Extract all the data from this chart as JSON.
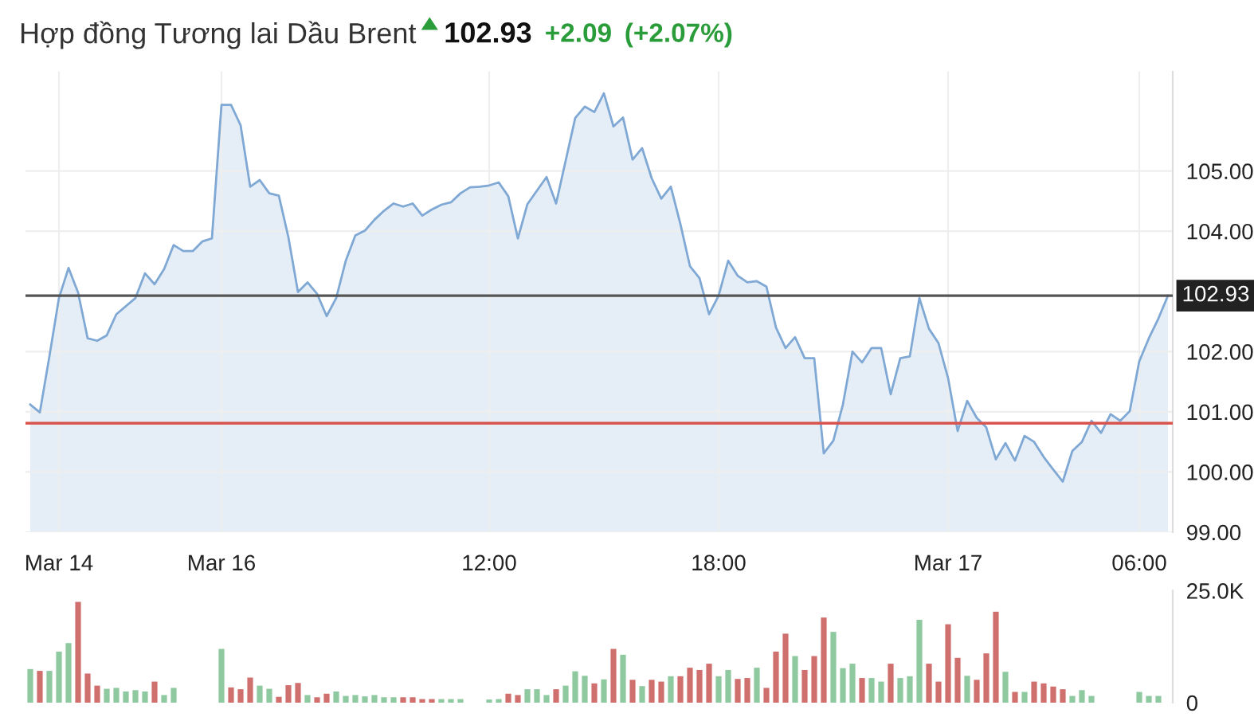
{
  "chart_data": [
    {
      "type": "area",
      "title": "Hợp đồng Tương lai Dầu Brent",
      "annotations": [
        "102.93",
        "+2.09",
        "(+2.07%)"
      ],
      "categories": [
        null,
        null,
        null,
        "Mar 14",
        null,
        null,
        null,
        null,
        null,
        null,
        null,
        null,
        null,
        null,
        null,
        null,
        null,
        null,
        null,
        null,
        "Mar 16",
        null,
        null,
        null,
        null,
        null,
        null,
        null,
        null,
        null,
        null,
        null,
        null,
        null,
        null,
        null,
        null,
        null,
        null,
        null,
        null,
        null,
        null,
        null,
        null,
        null,
        null,
        null,
        "12:00",
        null,
        null,
        null,
        null,
        null,
        null,
        null,
        null,
        null,
        null,
        null,
        null,
        null,
        null,
        null,
        null,
        null,
        null,
        null,
        null,
        null,
        null,
        null,
        "18:00",
        null,
        null,
        null,
        null,
        null,
        null,
        null,
        null,
        null,
        null,
        null,
        null,
        null,
        null,
        null,
        null,
        null,
        null,
        null,
        null,
        null,
        null,
        null,
        "Mar 17",
        null,
        null,
        null,
        null,
        null,
        null,
        null,
        null,
        null,
        null,
        null,
        null,
        null,
        null,
        null,
        null,
        null,
        null,
        null,
        "06:00",
        null,
        null,
        null
      ],
      "ylim": [
        99,
        106.65
      ],
      "yticks": [
        {
          "value": 99,
          "label": "99.00"
        },
        {
          "value": 100,
          "label": "100.00"
        },
        {
          "value": 101,
          "label": "101.00"
        },
        {
          "value": 102,
          "label": "102.00"
        },
        {
          "value": 104,
          "label": "104.00"
        },
        {
          "value": 105,
          "label": "105.00"
        }
      ],
      "grid": true,
      "ref_lines": [
        {
          "axis": "y",
          "value": 102.93,
          "label": "102.93",
          "color": "#555555"
        },
        {
          "axis": "y",
          "value": 100.81,
          "color": "#d9534f"
        }
      ],
      "series": [
        {
          "color": "#7fa8d4",
          "values": [
            101.12,
            100.99,
            101.92,
            102.89,
            103.39,
            102.98,
            102.22,
            102.18,
            102.27,
            102.62,
            null,
            102.89,
            103.3,
            103.12,
            103.37,
            103.77,
            103.67,
            103.67,
            103.83,
            103.88,
            106.1,
            106.1,
            105.76,
            104.74,
            104.85,
            104.63,
            104.59,
            103.9,
            102.99,
            103.15,
            102.96,
            102.59,
            102.89,
            103.51,
            103.93,
            104.01,
            104.19,
            104.34,
            104.46,
            104.41,
            104.46,
            104.26,
            104.36,
            104.44,
            104.48,
            104.63,
            104.73,
            104.74,
            104.76,
            104.81,
            104.58,
            103.88,
            104.45,
            null,
            104.9,
            104.46,
            null,
            105.88,
            106.07,
            105.98,
            106.29,
            105.74,
            105.89,
            105.19,
            105.38,
            104.88,
            104.54,
            104.74,
            104.12,
            103.42,
            103.22,
            102.62,
            102.93,
            103.51,
            103.26,
            103.15,
            103.17,
            103.08,
            102.4,
            102.06,
            102.24,
            101.89,
            101.89,
            100.31,
            100.52,
            101.12,
            102.0,
            101.82,
            102.06,
            102.06,
            101.29,
            101.89,
            101.92,
            102.89,
            102.38,
            102.14,
            101.56,
            100.68,
            101.18,
            100.9,
            100.74,
            100.21,
            100.48,
            100.19,
            100.6,
            100.5,
            100.25,
            100.04,
            99.84,
            100.35,
            100.5,
            100.85,
            100.65,
            100.96,
            100.85,
            101.01,
            101.84,
            102.22,
            102.55,
            102.93
          ]
        }
      ]
    },
    {
      "type": "bar",
      "ylim": [
        0,
        25000
      ],
      "yticks": [
        {
          "value": 25000,
          "label": "25.0K"
        },
        0
      ],
      "categories": [
        null,
        null,
        null,
        null,
        null,
        null,
        null,
        null,
        null,
        null,
        null,
        null,
        null,
        null,
        null,
        null,
        null,
        null,
        null,
        null,
        null,
        null,
        null,
        null,
        null,
        null,
        null,
        null,
        null,
        null,
        null,
        null,
        null,
        null,
        null,
        null,
        null,
        null,
        null,
        null,
        null,
        null,
        null,
        null,
        null,
        null,
        null,
        null,
        null,
        null,
        null,
        null,
        null,
        null,
        null,
        null,
        null,
        null,
        null,
        null,
        null,
        null,
        null,
        null,
        null,
        null,
        null,
        null,
        null,
        null,
        null,
        null,
        null,
        null,
        null,
        null,
        null,
        null,
        null,
        null,
        null,
        null,
        null,
        null,
        null,
        null,
        null,
        null,
        null,
        null,
        null,
        null,
        null,
        null,
        null,
        null,
        null,
        null,
        null,
        null,
        null,
        null,
        null,
        null,
        null,
        null,
        null,
        null,
        null,
        null,
        null,
        null,
        null,
        null,
        null,
        null,
        null,
        null,
        null,
        null
      ],
      "values": [
        7500,
        7100,
        7100,
        11400,
        13300,
        22500,
        6500,
        3800,
        3100,
        3300,
        2500,
        2800,
        2500,
        4700,
        1700,
        3300,
        null,
        null,
        null,
        null,
        12000,
        3400,
        3000,
        5600,
        3800,
        3100,
        1300,
        3900,
        4400,
        1700,
        1200,
        2000,
        2500,
        1500,
        1700,
        1400,
        1700,
        1200,
        1200,
        1200,
        1200,
        800,
        800,
        800,
        800,
        800,
        null,
        null,
        700,
        800,
        2000,
        1700,
        3000,
        3000,
        1700,
        3000,
        3800,
        7000,
        6000,
        4300,
        5200,
        12000,
        10700,
        5100,
        3700,
        5100,
        4700,
        5900,
        5900,
        7800,
        7300,
        8700,
        5900,
        7300,
        5300,
        5500,
        7800,
        3300,
        11400,
        15400,
        10400,
        7300,
        10400,
        19000,
        15800,
        7700,
        8700,
        5500,
        5500,
        4700,
        8700,
        5500,
        5900,
        18500,
        8700,
        4700,
        17500,
        10000,
        6000,
        5100,
        11000,
        20300,
        6900,
        2400,
        2400,
        4700,
        4300,
        3600,
        3000,
        1500,
        2800,
        1500,
        null,
        null,
        null,
        null,
        2400,
        1500,
        1500,
        null
      ],
      "colors": [
        "#8fc9a0",
        "#d0706e",
        "#8fc9a0",
        "#8fc9a0",
        "#8fc9a0",
        "#d0706e",
        "#d0706e",
        "#d0706e",
        "#8fc9a0",
        "#8fc9a0",
        "#8fc9a0",
        "#8fc9a0",
        "#8fc9a0",
        "#d0706e",
        "#8fc9a0",
        "#8fc9a0",
        null,
        null,
        null,
        null,
        "#8fc9a0",
        "#d0706e",
        "#d0706e",
        "#d0706e",
        "#8fc9a0",
        "#8fc9a0",
        "#d0706e",
        "#d0706e",
        "#d0706e",
        "#8fc9a0",
        "#d0706e",
        "#d0706e",
        "#8fc9a0",
        "#8fc9a0",
        "#8fc9a0",
        "#8fc9a0",
        "#8fc9a0",
        "#8fc9a0",
        "#8fc9a0",
        "#d0706e",
        "#d0706e",
        "#d0706e",
        "#d0706e",
        "#8fc9a0",
        "#8fc9a0",
        "#8fc9a0",
        null,
        null,
        "#8fc9a0",
        "#8fc9a0",
        "#d0706e",
        "#d0706e",
        "#8fc9a0",
        "#8fc9a0",
        "#8fc9a0",
        "#d0706e",
        "#8fc9a0",
        "#8fc9a0",
        "#8fc9a0",
        "#d0706e",
        "#8fc9a0",
        "#d0706e",
        "#8fc9a0",
        "#d0706e",
        "#8fc9a0",
        "#d0706e",
        "#d0706e",
        "#8fc9a0",
        "#d0706e",
        "#d0706e",
        "#d0706e",
        "#d0706e",
        "#8fc9a0",
        "#8fc9a0",
        "#d0706e",
        "#d0706e",
        "#8fc9a0",
        "#d0706e",
        "#d0706e",
        "#d0706e",
        "#8fc9a0",
        "#d0706e",
        "#d0706e",
        "#d0706e",
        "#8fc9a0",
        "#8fc9a0",
        "#8fc9a0",
        "#d0706e",
        "#8fc9a0",
        "#8fc9a0",
        "#d0706e",
        "#8fc9a0",
        "#8fc9a0",
        "#8fc9a0",
        "#d0706e",
        "#d0706e",
        "#d0706e",
        "#d0706e",
        "#8fc9a0",
        "#d0706e",
        "#d0706e",
        "#d0706e",
        "#8fc9a0",
        "#d0706e",
        "#8fc9a0",
        "#d0706e",
        "#d0706e",
        "#d0706e",
        "#d0706e",
        "#8fc9a0",
        "#8fc9a0",
        "#8fc9a0",
        null,
        null,
        null,
        null,
        "#8fc9a0",
        "#8fc9a0",
        "#8fc9a0",
        null
      ]
    }
  ]
}
